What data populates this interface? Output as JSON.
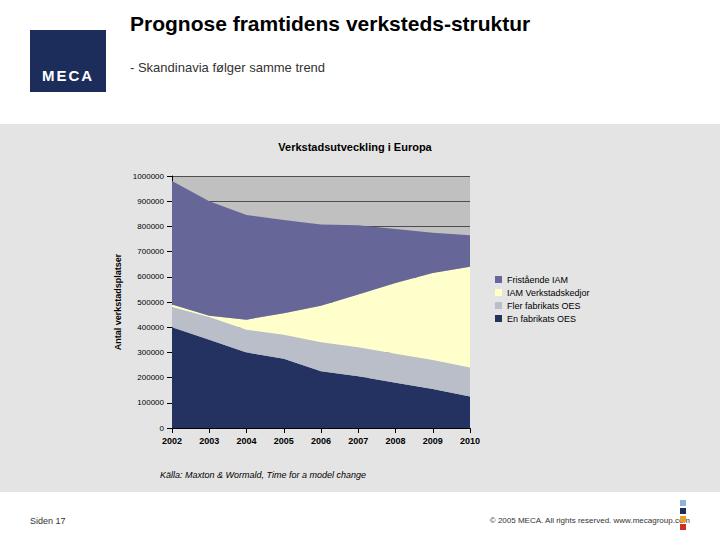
{
  "header": {
    "title": "Prognose framtidens  verksteds-struktur",
    "subtitle": "- Skandinavia følger samme trend",
    "logo": "MECA"
  },
  "chart_data": {
    "type": "area",
    "title": "Verkstadsutveckling i Europa",
    "y_label": "Antal verkstadsplatser",
    "categories": [
      "2002",
      "2003",
      "2004",
      "2005",
      "2006",
      "2007",
      "2008",
      "2009",
      "2010"
    ],
    "series": [
      {
        "name": "En fabrikats OES",
        "color": "#233260",
        "values": [
          400000,
          350000,
          300000,
          275000,
          225000,
          205000,
          180000,
          155000,
          125000
        ]
      },
      {
        "name": "Fler fabrikats OES",
        "color": "#b9bec9",
        "values": [
          80000,
          90000,
          90000,
          95000,
          115000,
          115000,
          115000,
          115000,
          115000
        ]
      },
      {
        "name": "IAM Verkstadskedjor",
        "color": "#ffffcc",
        "values": [
          10000,
          5000,
          40000,
          85000,
          145000,
          210000,
          280000,
          345000,
          400000
        ]
      },
      {
        "name": "Fristående IAM",
        "color": "#666699",
        "values": [
          490000,
          455000,
          415000,
          370000,
          323000,
          275000,
          215000,
          160000,
          125000
        ]
      }
    ],
    "ylim": [
      0,
      1000000
    ],
    "yticks": [
      0,
      100000,
      200000,
      300000,
      400000,
      500000,
      600000,
      700000,
      800000,
      900000,
      1000000
    ],
    "stacked": true,
    "grid": true,
    "legend": "right"
  },
  "source": "Källa: Maxton & Wormald, Time for a model change",
  "footer": {
    "page": "Siden 17",
    "copyright": "© 2005 MECA. All rights reserved.  www.mecagroup.com"
  }
}
